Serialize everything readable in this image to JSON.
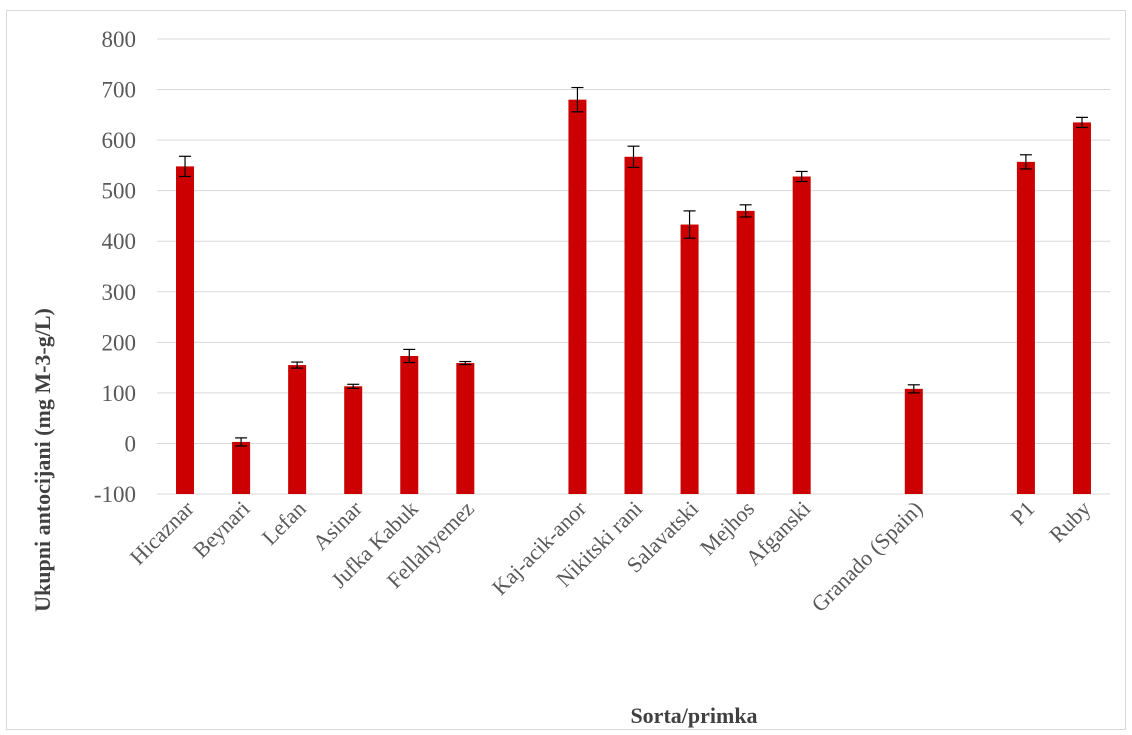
{
  "chart_data": {
    "type": "bar",
    "xlabel": "Sorta/primka",
    "ylabel": "Ukupni antocijani (mg M-3-g/L)",
    "ylim": [
      -100,
      800
    ],
    "yticks": [
      -100,
      0,
      100,
      200,
      300,
      400,
      500,
      600,
      700,
      800
    ],
    "grid": true,
    "legend": "none",
    "bar_color": "#cc0000",
    "categories": [
      "Hicaznar",
      "Beynari",
      "Lefan",
      "Asinar",
      "Jufka Kabuk",
      "Fellahyemez",
      "",
      "Kaj-acik-anor",
      "Nikitski rani",
      "Salavatski",
      "Mejhos",
      "Afganski",
      "",
      "Granado (Spain)",
      "",
      "P1",
      "Ruby"
    ],
    "values": [
      548,
      3,
      155,
      113,
      173,
      159,
      null,
      680,
      567,
      433,
      460,
      528,
      null,
      108,
      null,
      557,
      635
    ],
    "errors": [
      20,
      8,
      6,
      4,
      13,
      3,
      null,
      24,
      21,
      27,
      12,
      10,
      null,
      8,
      null,
      14,
      10
    ]
  }
}
